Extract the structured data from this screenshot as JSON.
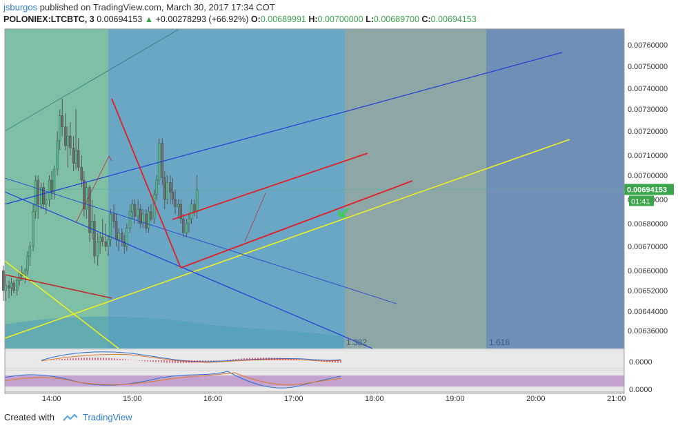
{
  "header": {
    "username": "jsburgos",
    "published_text": "published on TradingView.com, March 30, 2017 17:34 COT",
    "symbol": "POLONIEX:LTCBTC, 3",
    "last_price": "0.00694153",
    "change": "+0.00278293 (+66.92%)",
    "o_label": "O:",
    "o_value": "0.00689991",
    "h_label": "H:",
    "h_value": "0.00700000",
    "l_label": "L:",
    "l_value": "0.00689700",
    "c_label": "C:",
    "c_value": "0.00694153"
  },
  "footer": {
    "created_with": "Created with",
    "brand": "TradingView"
  },
  "colors": {
    "zone_green": "#7fbfa6",
    "zone_blue": "#6aa7c4",
    "zone_gray": "#8ea6a6",
    "zone_dark": "#6f8fb6",
    "candle_up": "#53b987",
    "candle_down": "#6b6b6b",
    "trend_red": "#e21f26",
    "trend_blue": "#1f3ed8",
    "trend_yellow": "#f0f020",
    "price_tag": "#3aa54a",
    "oscillator_fill": "#b58ac7"
  },
  "chart_data": {
    "type": "candlestick",
    "symbol": "POLONIEX:LTCBTC",
    "interval": "3",
    "last_price": 0.00694153,
    "last_price_label": "0.00694153",
    "countdown": "01:41",
    "ohlc_last": {
      "open": 0.00689991,
      "high": 0.007,
      "low": 0.006897,
      "close": 0.00694153
    },
    "y_ticks": [
      "0.00760000",
      "0.00750000",
      "0.00740000",
      "0.00730000",
      "0.00720000",
      "0.00710000",
      "0.00700000",
      "0.00690000",
      "0.00680000",
      "0.00670000",
      "0.00660000",
      "0.00652000",
      "0.00644000",
      "0.00636000"
    ],
    "x_ticks": [
      "14:00",
      "15:00",
      "16:00",
      "17:00",
      "18:00",
      "19:00",
      "20:00",
      "21:00"
    ],
    "fib_labels": [
      "1.382",
      "1.618"
    ],
    "osc1_label": "0.0000",
    "osc2_label": "0.0000",
    "candles": [
      [
        13.4,
        0.0066,
        0.00662,
        0.00648,
        0.00652
      ],
      [
        13.43,
        0.00652,
        0.00658,
        0.00648,
        0.00654
      ],
      [
        13.47,
        0.00654,
        0.00656,
        0.00649,
        0.00653
      ],
      [
        13.5,
        0.00653,
        0.00657,
        0.0065,
        0.00655
      ],
      [
        13.53,
        0.00655,
        0.00656,
        0.00651,
        0.00652
      ],
      [
        13.57,
        0.00652,
        0.00657,
        0.0065,
        0.00656
      ],
      [
        13.6,
        0.00656,
        0.0066,
        0.00654,
        0.00659
      ],
      [
        13.63,
        0.00659,
        0.00662,
        0.00656,
        0.00658
      ],
      [
        13.67,
        0.00658,
        0.00661,
        0.00655,
        0.0066
      ],
      [
        13.7,
        0.0066,
        0.00668,
        0.00658,
        0.00666
      ],
      [
        13.73,
        0.00666,
        0.00672,
        0.00662,
        0.0067
      ],
      [
        13.77,
        0.0067,
        0.00688,
        0.00668,
        0.00685
      ],
      [
        13.8,
        0.00685,
        0.007,
        0.00682,
        0.00698
      ],
      [
        13.83,
        0.00698,
        0.007,
        0.00682,
        0.00688
      ],
      [
        13.87,
        0.00688,
        0.00697,
        0.00686,
        0.00695
      ],
      [
        13.9,
        0.00695,
        0.00697,
        0.00686,
        0.00688
      ],
      [
        13.93,
        0.00688,
        0.00693,
        0.00684,
        0.0069
      ],
      [
        13.97,
        0.0069,
        0.007,
        0.00687,
        0.00698
      ],
      [
        14.0,
        0.00698,
        0.00702,
        0.0069,
        0.00693
      ],
      [
        14.03,
        0.00693,
        0.00705,
        0.0069,
        0.00703
      ],
      [
        14.07,
        0.00703,
        0.0072,
        0.007,
        0.00716
      ],
      [
        14.1,
        0.00716,
        0.0073,
        0.00712,
        0.00727
      ],
      [
        14.13,
        0.00727,
        0.00735,
        0.00718,
        0.00722
      ],
      [
        14.17,
        0.00722,
        0.00728,
        0.00712,
        0.00714
      ],
      [
        14.2,
        0.00714,
        0.00722,
        0.00704,
        0.00718
      ],
      [
        14.23,
        0.00718,
        0.00724,
        0.0071,
        0.00713
      ],
      [
        14.27,
        0.00713,
        0.00718,
        0.00702,
        0.00706
      ],
      [
        14.3,
        0.00706,
        0.0073,
        0.00703,
        0.00712
      ],
      [
        14.33,
        0.00712,
        0.00717,
        0.00702,
        0.00704
      ],
      [
        14.37,
        0.00704,
        0.0071,
        0.00695,
        0.00698
      ],
      [
        14.4,
        0.00698,
        0.00702,
        0.00683,
        0.00686
      ],
      [
        14.43,
        0.00686,
        0.00697,
        0.00682,
        0.00695
      ],
      [
        14.47,
        0.00695,
        0.00696,
        0.00672,
        0.00676
      ],
      [
        14.5,
        0.00676,
        0.0069,
        0.00673,
        0.00681
      ],
      [
        14.53,
        0.00681,
        0.00684,
        0.00663,
        0.00666
      ],
      [
        14.57,
        0.00666,
        0.00676,
        0.00662,
        0.00672
      ],
      [
        14.6,
        0.00672,
        0.00676,
        0.00667,
        0.00674
      ],
      [
        14.63,
        0.00674,
        0.00682,
        0.0067,
        0.00672
      ],
      [
        14.67,
        0.00672,
        0.0068,
        0.00668,
        0.0067
      ],
      [
        14.7,
        0.0067,
        0.00675,
        0.00666,
        0.00673
      ],
      [
        14.73,
        0.00673,
        0.00686,
        0.0067,
        0.00684
      ],
      [
        14.77,
        0.00684,
        0.00688,
        0.00678,
        0.00681
      ],
      [
        14.8,
        0.00681,
        0.00684,
        0.0067,
        0.00673
      ],
      [
        14.83,
        0.00673,
        0.00678,
        0.00668,
        0.00676
      ],
      [
        14.87,
        0.00676,
        0.00678,
        0.0067,
        0.00672
      ],
      [
        14.9,
        0.00672,
        0.00675,
        0.00667,
        0.0067
      ],
      [
        14.93,
        0.0067,
        0.0068,
        0.00668,
        0.00678
      ],
      [
        14.97,
        0.00678,
        0.00688,
        0.00676,
        0.00685
      ],
      [
        15.0,
        0.00685,
        0.0069,
        0.00682,
        0.00688
      ],
      [
        15.03,
        0.00688,
        0.0069,
        0.0068,
        0.00683
      ],
      [
        15.07,
        0.00683,
        0.0069,
        0.0068,
        0.00686
      ],
      [
        15.1,
        0.00686,
        0.00688,
        0.00678,
        0.0068
      ],
      [
        15.13,
        0.0068,
        0.00686,
        0.00678,
        0.00684
      ],
      [
        15.17,
        0.00684,
        0.00686,
        0.00676,
        0.00678
      ],
      [
        15.2,
        0.00678,
        0.00687,
        0.00676,
        0.00685
      ],
      [
        15.23,
        0.00685,
        0.00688,
        0.00681,
        0.00682
      ],
      [
        15.27,
        0.00682,
        0.00694,
        0.0068,
        0.00692
      ],
      [
        15.3,
        0.00692,
        0.007,
        0.0069,
        0.00698
      ],
      [
        15.33,
        0.00698,
        0.00717,
        0.00696,
        0.00715
      ],
      [
        15.37,
        0.00715,
        0.00717,
        0.00696,
        0.00699
      ],
      [
        15.4,
        0.00699,
        0.00702,
        0.00686,
        0.0069
      ],
      [
        15.43,
        0.0069,
        0.007,
        0.00688,
        0.00697
      ],
      [
        15.47,
        0.00697,
        0.007,
        0.00688,
        0.00693
      ],
      [
        15.5,
        0.00693,
        0.00699,
        0.00688,
        0.0069
      ],
      [
        15.53,
        0.0069,
        0.00694,
        0.00684,
        0.00687
      ],
      [
        15.57,
        0.00687,
        0.0069,
        0.00682,
        0.00688
      ],
      [
        15.6,
        0.00688,
        0.0069,
        0.0068,
        0.00682
      ],
      [
        15.63,
        0.00682,
        0.00684,
        0.00674,
        0.00676
      ],
      [
        15.67,
        0.00676,
        0.00682,
        0.00674,
        0.0068
      ],
      [
        15.7,
        0.0068,
        0.00684,
        0.00676,
        0.00682
      ],
      [
        15.73,
        0.00682,
        0.0069,
        0.0068,
        0.00688
      ],
      [
        15.77,
        0.00688,
        0.0069,
        0.00683,
        0.00685
      ],
      [
        15.8,
        0.00685,
        0.007,
        0.00682,
        0.00694
      ]
    ]
  }
}
